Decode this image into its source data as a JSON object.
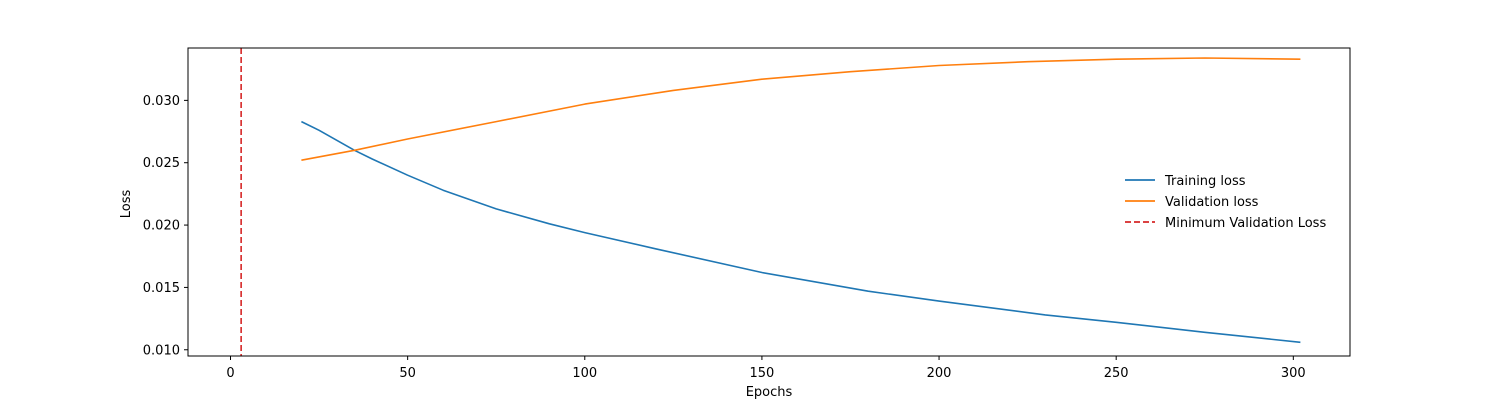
{
  "chart_data": {
    "type": "line",
    "title": "",
    "xlabel": "Epochs",
    "ylabel": "Loss",
    "xlim": [
      -12,
      316
    ],
    "ylim": [
      0.0095,
      0.0342
    ],
    "xticks": [
      0,
      50,
      100,
      150,
      200,
      250,
      300
    ],
    "xtick_labels": [
      "0",
      "50",
      "100",
      "150",
      "200",
      "250",
      "300"
    ],
    "yticks": [
      0.01,
      0.015,
      0.02,
      0.025,
      0.03
    ],
    "ytick_labels": [
      "0.010",
      "0.015",
      "0.020",
      "0.025",
      "0.030"
    ],
    "grid": false,
    "legend_position": "center-right",
    "series": [
      {
        "name": "Training loss",
        "color": "#1f77b4",
        "style": "solid",
        "x": [
          20,
          25,
          30,
          35,
          40,
          50,
          60,
          75,
          90,
          100,
          120,
          150,
          180,
          200,
          230,
          250,
          275,
          302
        ],
        "y": [
          0.0283,
          0.0276,
          0.0268,
          0.026,
          0.0253,
          0.024,
          0.0228,
          0.0213,
          0.0201,
          0.0194,
          0.0181,
          0.0162,
          0.0147,
          0.0139,
          0.0128,
          0.0122,
          0.0114,
          0.0106
        ]
      },
      {
        "name": "Validation loss",
        "color": "#ff7f0e",
        "style": "solid",
        "x": [
          20,
          35,
          50,
          75,
          100,
          125,
          150,
          175,
          200,
          225,
          250,
          275,
          302
        ],
        "y": [
          0.0252,
          0.026,
          0.0269,
          0.0283,
          0.0297,
          0.0308,
          0.0317,
          0.0323,
          0.0328,
          0.0331,
          0.0333,
          0.0334,
          0.0333
        ]
      },
      {
        "name": "Minimum Validation Loss",
        "color": "#d62728",
        "style": "dashed",
        "vertical_line_x": 3
      }
    ]
  }
}
